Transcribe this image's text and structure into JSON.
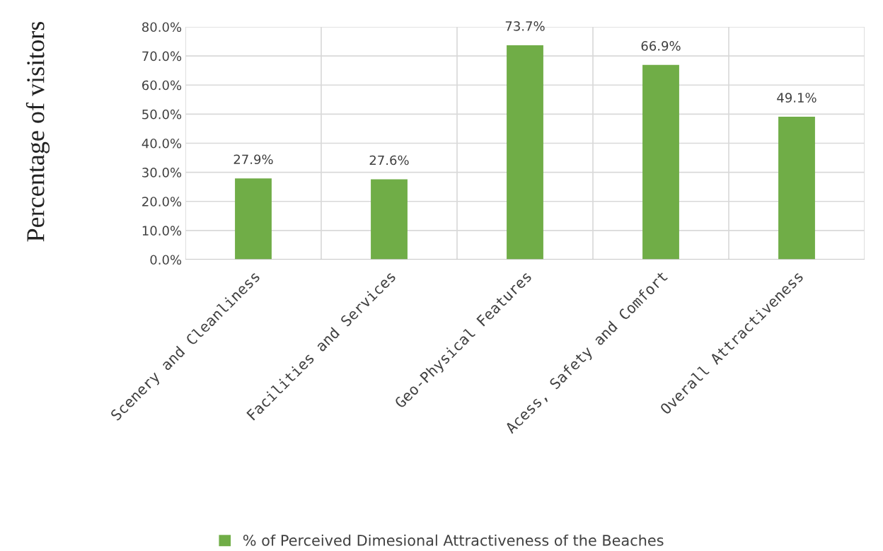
{
  "chart_data": {
    "type": "bar",
    "ylabel": "Percentage of visitors",
    "categories": [
      "Scenery and Cleanliness",
      "Facilities and Services",
      "Geo-Physical Features",
      "Acess, Safety and Comfort",
      "Overall Attractiveness"
    ],
    "series": [
      {
        "name": "% of Perceived Dimesional Attractiveness of the Beaches",
        "color": "#70ad47",
        "values": [
          27.9,
          27.6,
          73.7,
          66.9,
          49.1
        ],
        "value_labels": [
          "27.9%",
          "27.6%",
          "73.7%",
          "66.9%",
          "49.1%"
        ]
      }
    ],
    "ylim": [
      0,
      80
    ],
    "yticks": [
      {
        "value": 0,
        "label": "0.0%"
      },
      {
        "value": 10,
        "label": "10.0%"
      },
      {
        "value": 20,
        "label": "20.0%"
      },
      {
        "value": 30,
        "label": "30.0%"
      },
      {
        "value": 40,
        "label": "40.0%"
      },
      {
        "value": 50,
        "label": "50.0%"
      },
      {
        "value": 60,
        "label": "60.0%"
      },
      {
        "value": 70,
        "label": "70.0%"
      },
      {
        "value": 80,
        "label": "80.0%"
      }
    ],
    "grid": true,
    "legend": "bottom"
  }
}
